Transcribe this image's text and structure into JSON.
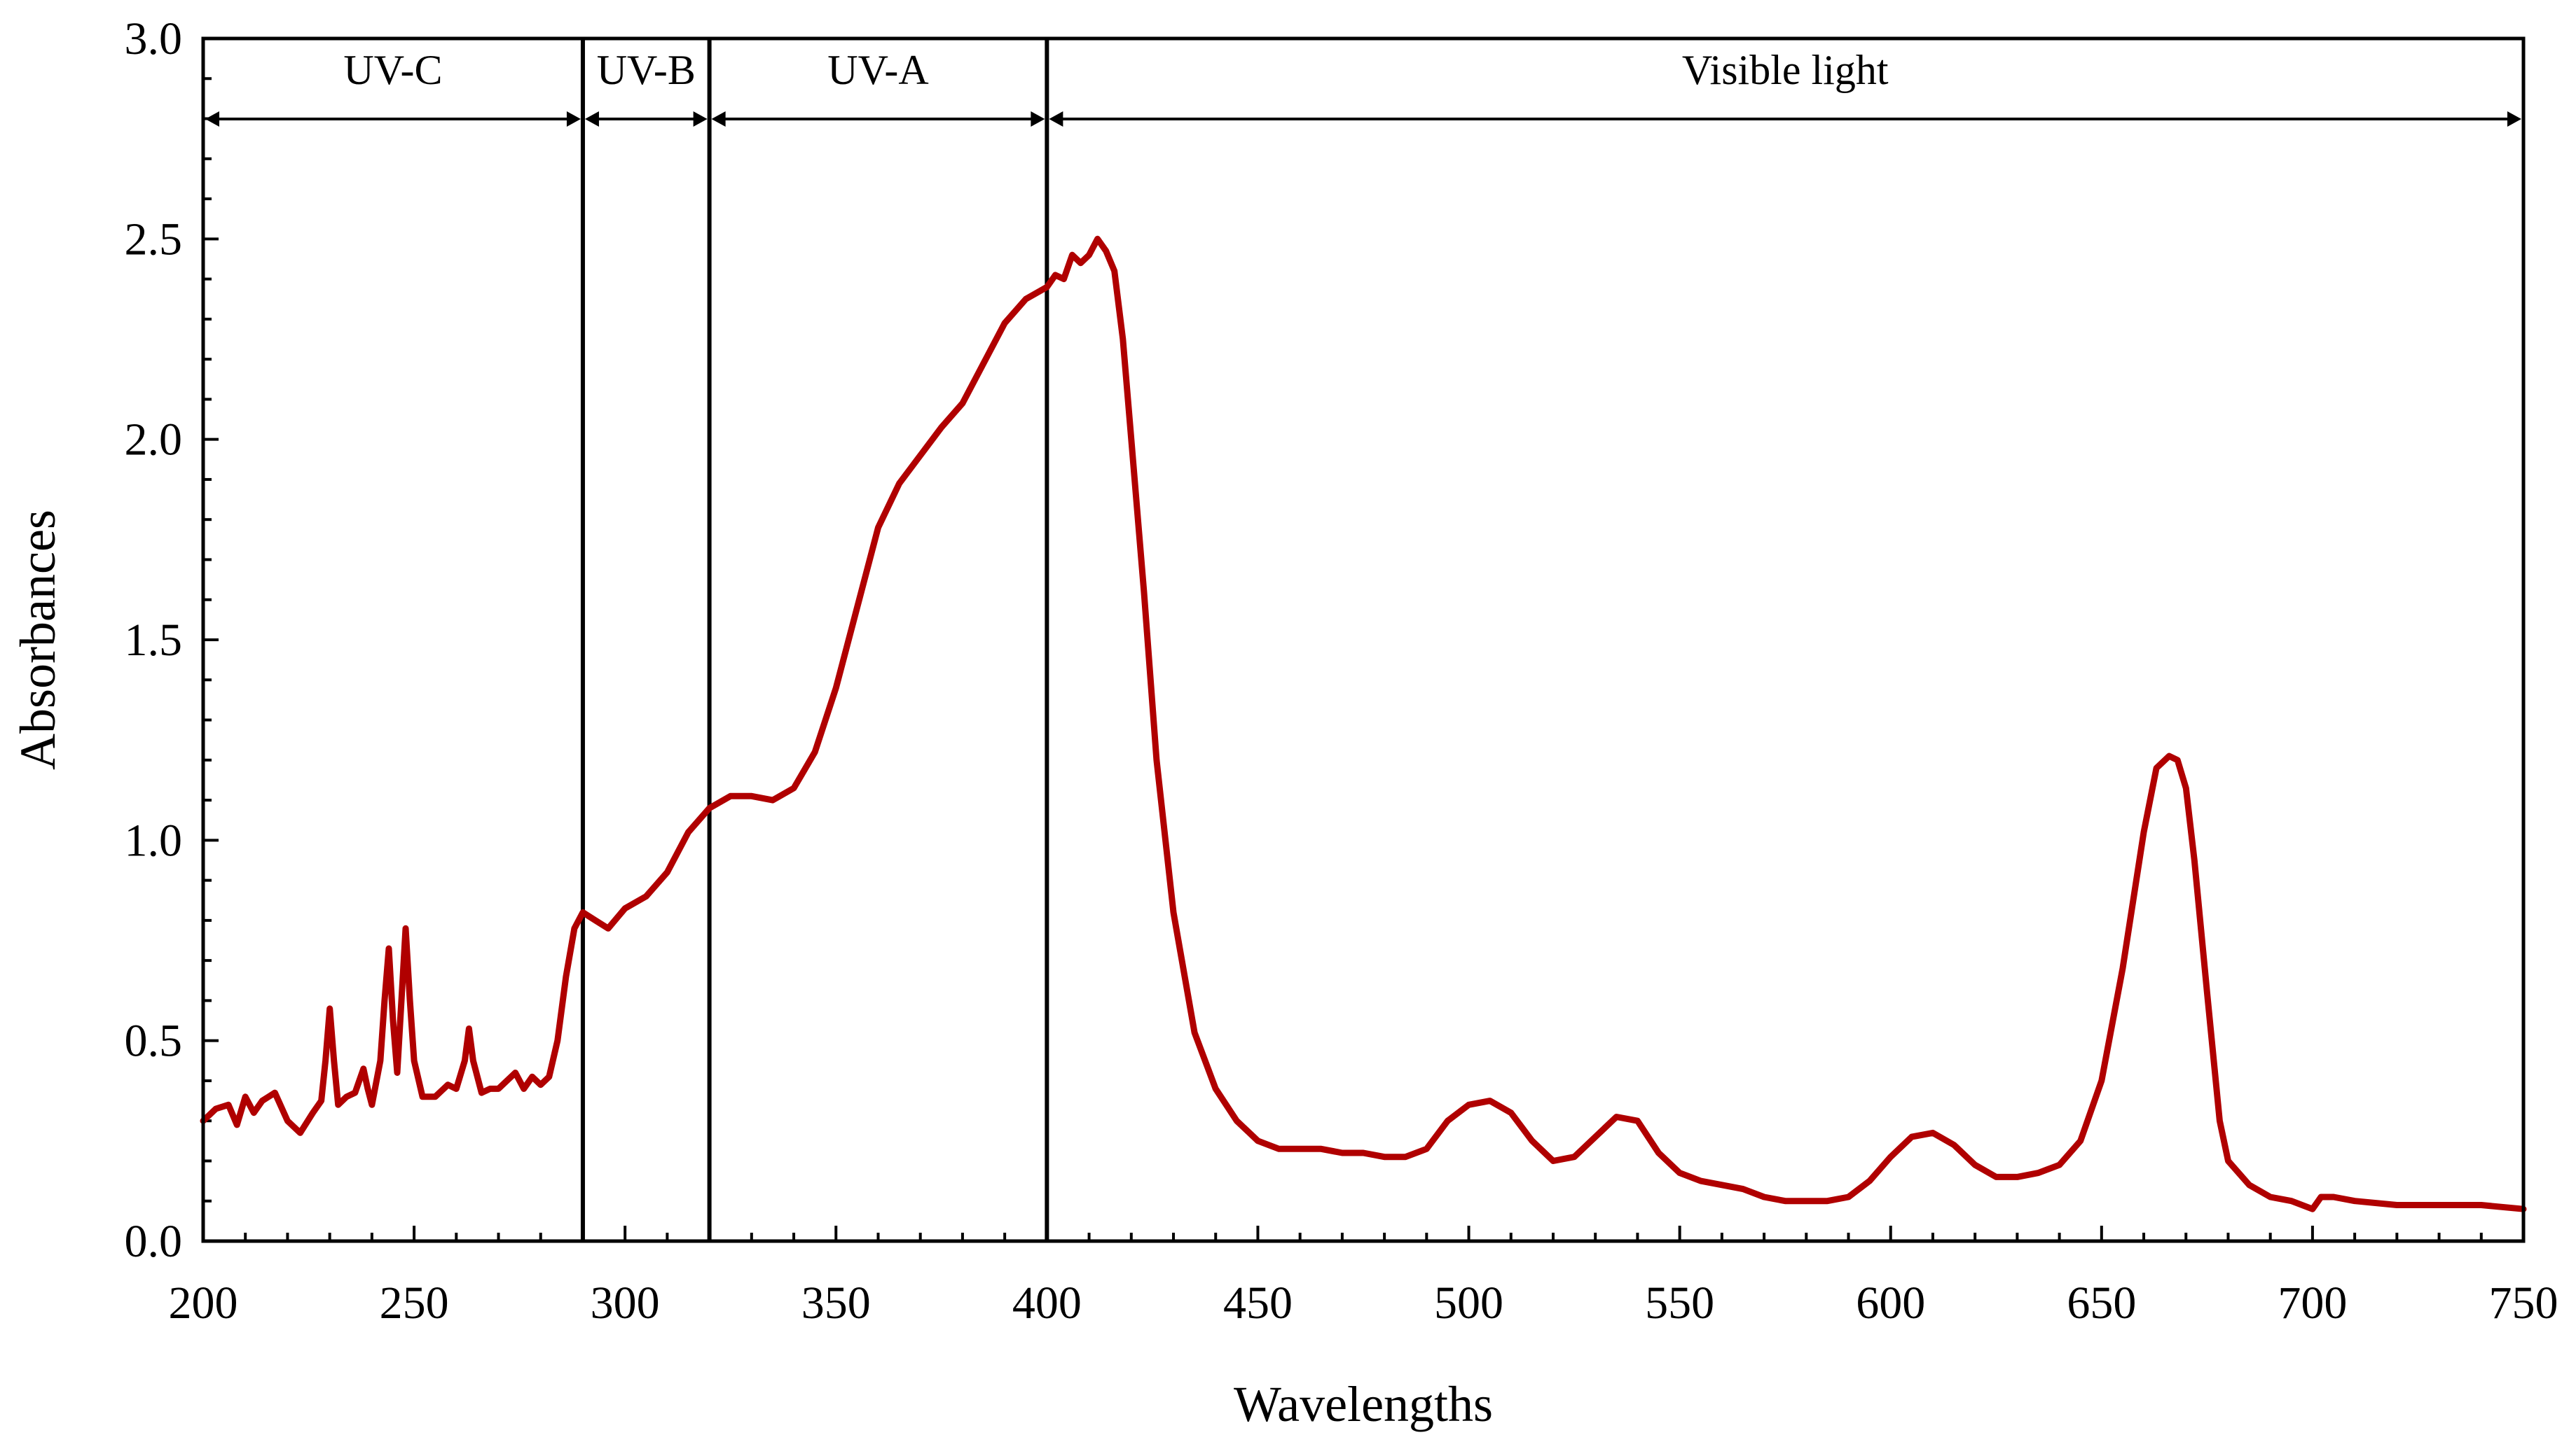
{
  "chart_data": {
    "type": "line",
    "title": "",
    "xlabel": "Wavelengths",
    "ylabel": "Absorbances",
    "xlim": [
      200,
      750
    ],
    "ylim": [
      0,
      3.0
    ],
    "x_ticks": [
      200,
      250,
      300,
      350,
      400,
      450,
      500,
      550,
      600,
      650,
      700,
      750
    ],
    "x_tick_labels": [
      "200",
      "250",
      "300",
      "350",
      "400",
      "450",
      "500",
      "550",
      "600",
      "650",
      "700",
      "750"
    ],
    "y_ticks": [
      0,
      0.5,
      1.0,
      1.5,
      2.0,
      2.5,
      3.0
    ],
    "y_tick_labels": [
      "0.0",
      "0.5",
      "1.0",
      "1.5",
      "2.0",
      "2.5",
      "3.0"
    ],
    "grid": false,
    "legend": null,
    "regions": [
      {
        "name": "UV-C",
        "start": 200,
        "end": 290
      },
      {
        "name": "UV-B",
        "start": 290,
        "end": 320
      },
      {
        "name": "UV-A",
        "start": 320,
        "end": 400
      },
      {
        "name": "Visible light",
        "start": 400,
        "end": 750
      }
    ],
    "series": [
      {
        "name": "Absorbance spectrum",
        "color": "#B00000",
        "x": [
          200,
          203,
          206,
          208,
          210,
          212,
          214,
          217,
          220,
          223,
          226,
          228,
          229,
          230,
          231,
          232,
          234,
          236,
          238,
          239,
          240,
          242,
          243,
          244,
          245,
          246,
          247,
          248,
          249,
          250,
          252,
          255,
          258,
          260,
          262,
          263,
          264,
          266,
          268,
          270,
          272,
          274,
          276,
          278,
          280,
          282,
          284,
          286,
          288,
          290,
          293,
          296,
          300,
          305,
          310,
          315,
          320,
          325,
          330,
          335,
          340,
          345,
          350,
          355,
          360,
          365,
          370,
          375,
          380,
          385,
          390,
          395,
          400,
          402,
          404,
          406,
          408,
          410,
          412,
          414,
          416,
          418,
          420,
          423,
          426,
          430,
          435,
          440,
          445,
          450,
          455,
          460,
          465,
          470,
          475,
          480,
          485,
          490,
          495,
          500,
          505,
          510,
          515,
          520,
          525,
          530,
          535,
          540,
          545,
          550,
          555,
          560,
          565,
          570,
          575,
          580,
          585,
          590,
          595,
          600,
          605,
          610,
          615,
          620,
          625,
          630,
          635,
          640,
          645,
          650,
          655,
          660,
          663,
          666,
          668,
          670,
          672,
          675,
          678,
          680,
          685,
          690,
          695,
          700,
          702,
          705,
          710,
          720,
          730,
          740,
          750
        ],
        "y": [
          0.3,
          0.33,
          0.34,
          0.29,
          0.36,
          0.32,
          0.35,
          0.37,
          0.3,
          0.27,
          0.32,
          0.35,
          0.45,
          0.58,
          0.45,
          0.34,
          0.36,
          0.37,
          0.43,
          0.38,
          0.34,
          0.45,
          0.6,
          0.73,
          0.55,
          0.42,
          0.6,
          0.78,
          0.6,
          0.45,
          0.36,
          0.36,
          0.39,
          0.38,
          0.45,
          0.53,
          0.45,
          0.37,
          0.38,
          0.38,
          0.4,
          0.42,
          0.38,
          0.41,
          0.39,
          0.41,
          0.5,
          0.66,
          0.78,
          0.82,
          0.8,
          0.78,
          0.83,
          0.86,
          0.92,
          1.02,
          1.08,
          1.11,
          1.11,
          1.1,
          1.13,
          1.22,
          1.38,
          1.58,
          1.78,
          1.89,
          1.96,
          2.03,
          2.09,
          2.19,
          2.29,
          2.35,
          2.38,
          2.41,
          2.4,
          2.46,
          2.44,
          2.46,
          2.5,
          2.47,
          2.42,
          2.25,
          2.0,
          1.62,
          1.2,
          0.82,
          0.52,
          0.38,
          0.3,
          0.25,
          0.23,
          0.23,
          0.23,
          0.22,
          0.22,
          0.21,
          0.21,
          0.23,
          0.3,
          0.34,
          0.35,
          0.32,
          0.25,
          0.2,
          0.21,
          0.26,
          0.31,
          0.3,
          0.22,
          0.17,
          0.15,
          0.14,
          0.13,
          0.11,
          0.1,
          0.1,
          0.1,
          0.11,
          0.15,
          0.21,
          0.26,
          0.27,
          0.24,
          0.19,
          0.16,
          0.16,
          0.17,
          0.19,
          0.25,
          0.4,
          0.68,
          1.02,
          1.18,
          1.21,
          1.2,
          1.13,
          0.95,
          0.62,
          0.3,
          0.2,
          0.14,
          0.11,
          0.1,
          0.08,
          0.11,
          0.11,
          0.1,
          0.09,
          0.09,
          0.09,
          0.08
        ]
      }
    ]
  }
}
